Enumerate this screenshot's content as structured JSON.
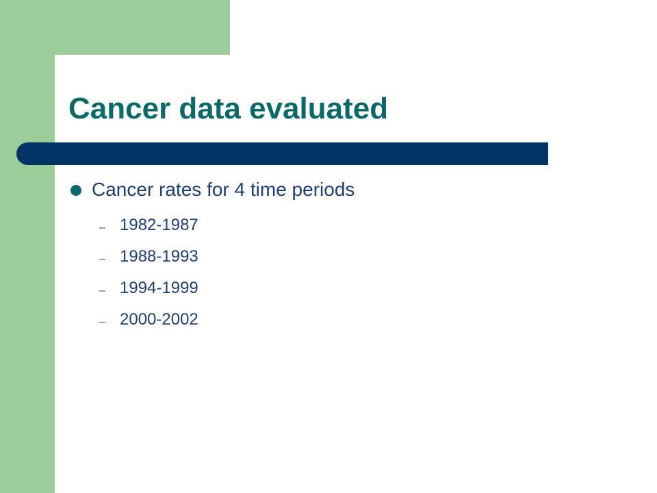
{
  "slide": {
    "title": "Cancer data evaluated",
    "bullet": {
      "text": "Cancer rates for 4 time periods",
      "sub_items": [
        {
          "dash": "–",
          "text": "1982-1987"
        },
        {
          "dash": "–",
          "text": "1988-1993"
        },
        {
          "dash": "–",
          "text": "1994-1999"
        },
        {
          "dash": "–",
          "text": "2000-2002"
        }
      ]
    }
  },
  "colors": {
    "accent_green": "#9ccc97",
    "title_teal": "#0a6a6a",
    "bar_navy": "#003366",
    "bullet_green": "#0a6a6a",
    "dash_teal": "#0a6a6a",
    "text_navy": "#1a3f7a"
  }
}
